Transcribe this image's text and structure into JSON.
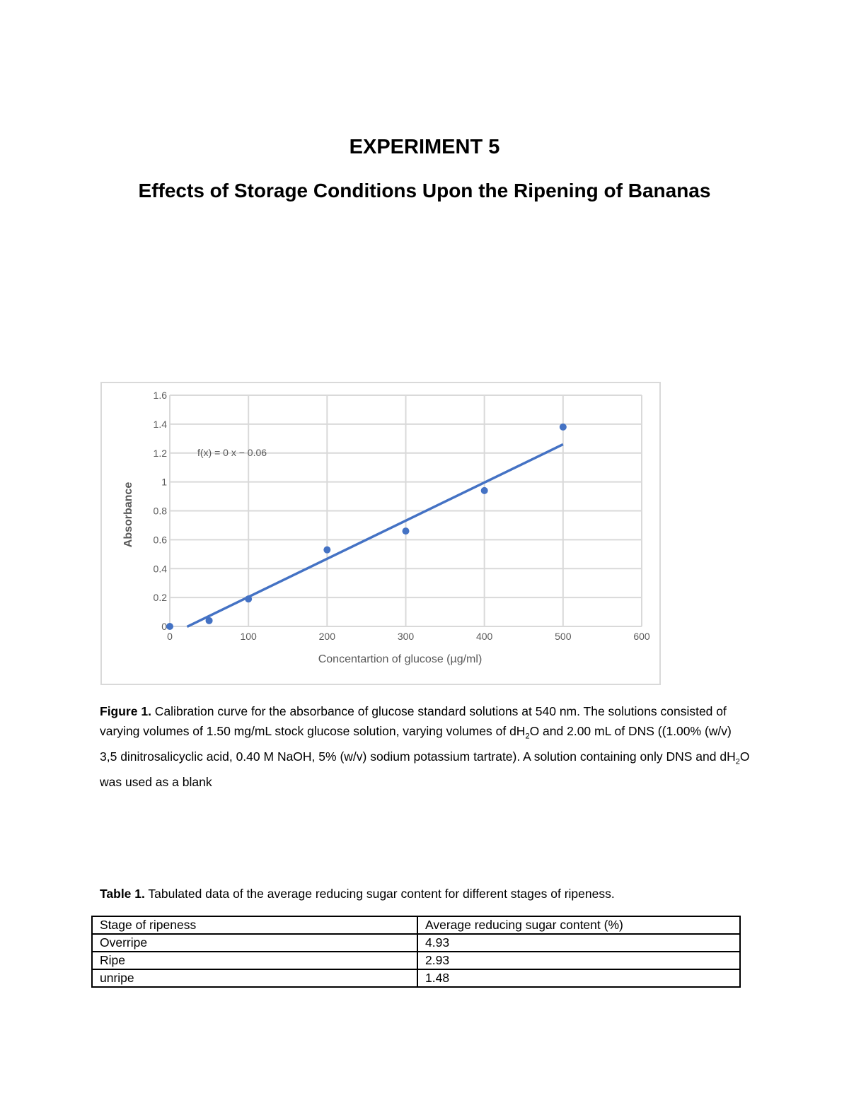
{
  "heading": "EXPERIMENT 5",
  "subheading": "Effects of Storage Conditions Upon the Ripening of Bananas",
  "chart_data": {
    "type": "scatter",
    "xlabel": "Concentartion of glucose (µg/ml)",
    "ylabel": "Absorbance",
    "xlim": [
      0,
      600
    ],
    "ylim": [
      0,
      1.6
    ],
    "xticks": [
      "0",
      "100",
      "200",
      "300",
      "400",
      "500",
      "600"
    ],
    "yticks": [
      "0",
      "0.2",
      "0.4",
      "0.6",
      "0.8",
      "1",
      "1.2",
      "1.4",
      "1.6"
    ],
    "grid": true,
    "series": [
      {
        "x": [
          0,
          50,
          100,
          200,
          300,
          400,
          500
        ],
        "y": [
          0,
          0.04,
          0.19,
          0.53,
          0.66,
          0.94,
          1.38
        ]
      }
    ],
    "trendline": {
      "label": "f(x) = 0 x − 0.06",
      "slope": 0.00264,
      "intercept": -0.06,
      "x_range": [
        22,
        500
      ]
    },
    "color": "#4472c4"
  },
  "figure_caption": {
    "label": "Figure 1.",
    "text_before": " Calibration curve for the absorbance of glucose standard solutions at 540 nm. The solutions consisted of varying volumes of 1.50 mg/mL stock glucose solution, varying volumes of dH",
    "sub1": "2",
    "text_middle": "O and 2.00 mL of DNS ((1.00% (w/v) 3,5 dinitrosalicyclic acid, 0.40 M NaOH, 5% (w/v) sodium potassium tartrate).  A solution containing only DNS and dH",
    "sub2": "2",
    "text_after": "O was used as a blank"
  },
  "table_caption": {
    "label": "Table 1.",
    "text": " Tabulated data of the average reducing sugar content for different stages of ripeness."
  },
  "table": {
    "headers": [
      "Stage of ripeness",
      "Average reducing sugar content (%)"
    ],
    "rows": [
      [
        "Overripe",
        "4.93"
      ],
      [
        "Ripe",
        "2.93"
      ],
      [
        "unripe",
        "1.48"
      ]
    ]
  }
}
